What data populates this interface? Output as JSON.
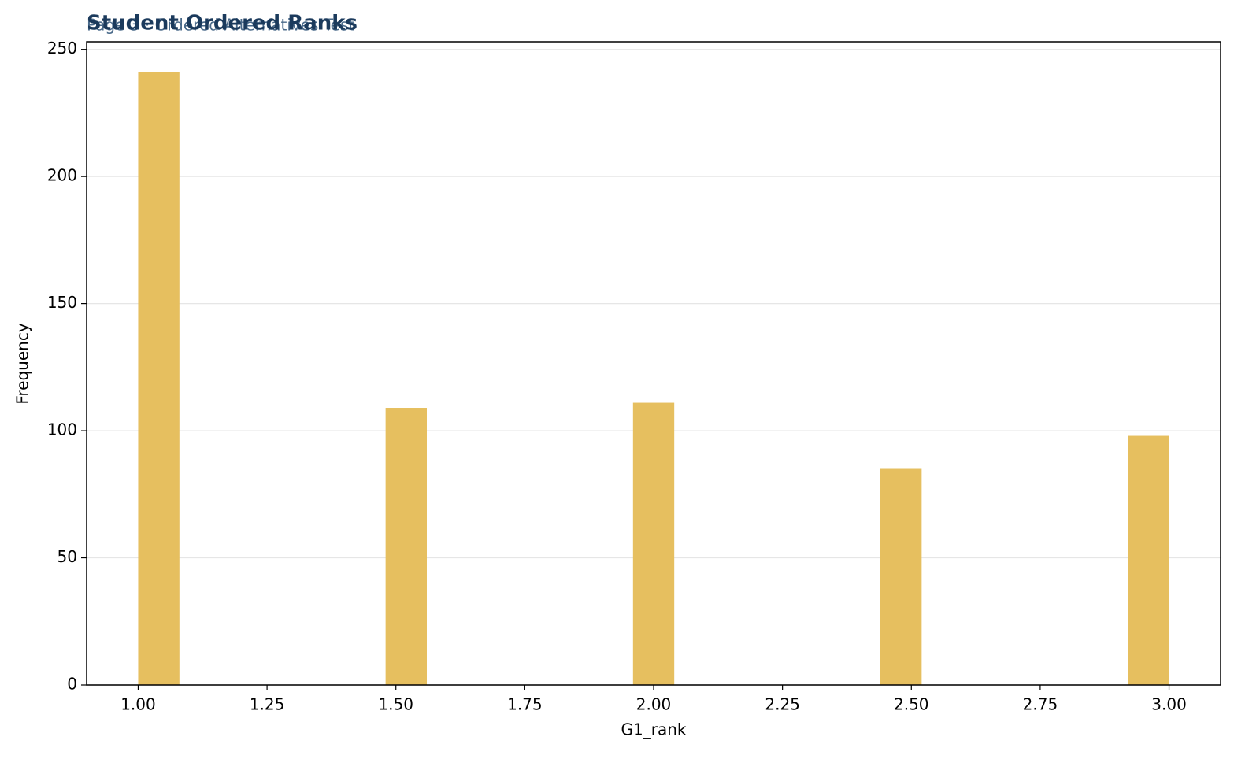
{
  "chart_data": {
    "type": "histogram",
    "title": "Student Ordered Ranks",
    "subtitle": "Page 3 · Ordered Alternatives Test",
    "x_label": "G1_rank",
    "y_label": "Frequency",
    "color": "#e6bf5f",
    "bins": [
      1.0,
      1.08,
      1.16,
      1.24,
      1.32,
      1.4,
      1.48,
      1.56,
      1.64,
      1.72,
      1.8,
      1.88,
      1.96,
      2.04,
      2.12,
      2.2,
      2.28,
      2.36,
      2.44,
      2.52,
      2.6,
      2.68,
      2.76,
      2.84,
      2.92,
      3.0
    ],
    "values": [
      241,
      0,
      0,
      0,
      0,
      0,
      109,
      0,
      0,
      0,
      0,
      0,
      111,
      0,
      0,
      0,
      0,
      0,
      85,
      0,
      0,
      0,
      0,
      0,
      98
    ],
    "xlim": [
      0.9,
      3.1
    ],
    "ylim": [
      0,
      253
    ],
    "xticks": [
      {
        "value": 1,
        "label": "1.00"
      },
      {
        "value": 1.25,
        "label": "1.25"
      },
      {
        "value": 1.5,
        "label": "1.50"
      },
      {
        "value": 1.75,
        "label": "1.75"
      },
      {
        "value": 2,
        "label": "2.00"
      },
      {
        "value": 2.25,
        "label": "2.25"
      },
      {
        "value": 2.5,
        "label": "2.50"
      },
      {
        "value": 2.75,
        "label": "2.75"
      },
      {
        "value": 3,
        "label": "3.00"
      }
    ],
    "yticks": [
      0,
      50,
      100,
      150,
      200,
      250
    ],
    "grid": true
  }
}
